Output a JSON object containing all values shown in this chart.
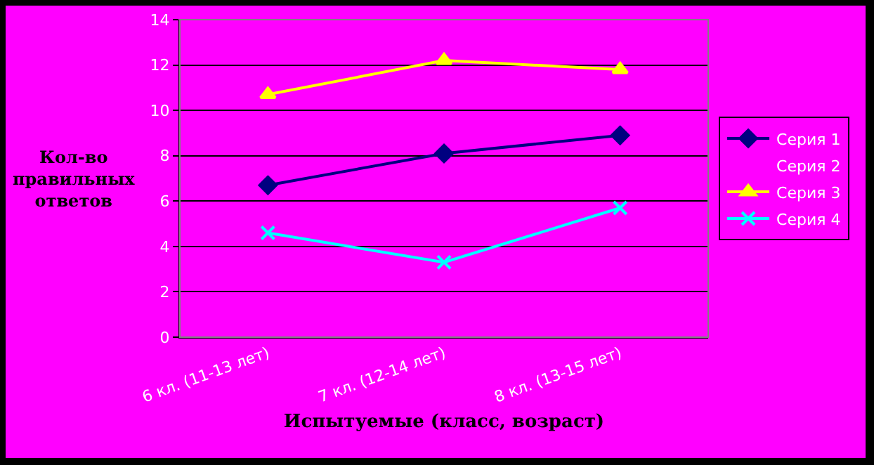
{
  "chart_data": {
    "type": "line",
    "xlabel": "Испытуемые (класс, возраст)",
    "ylabel": "Кол-во\nправильных\nответов",
    "categories": [
      "6 кл. (11-13 лет)",
      "7 кл. (12-14 лет)",
      "8 кл. (13-15 лет)"
    ],
    "series": [
      {
        "name": "Серия 1",
        "color": "#000080",
        "marker": "diamond",
        "values": [
          6.7,
          8.1,
          8.9
        ]
      },
      {
        "name": "Серия 2",
        "marker": "none",
        "values": [
          null,
          null,
          null
        ]
      },
      {
        "name": "Серия 3",
        "color": "#ffff00",
        "marker": "triangle",
        "values": [
          10.7,
          12.2,
          11.8
        ]
      },
      {
        "name": "Серия 4",
        "color": "#00ffff",
        "marker": "cross",
        "values": [
          4.6,
          3.3,
          5.7
        ]
      }
    ],
    "ylim": [
      0,
      14
    ],
    "yticks": [
      0,
      2,
      4,
      6,
      8,
      10,
      12,
      14
    ],
    "grid": "y",
    "legend": "right",
    "line_style": "solid"
  }
}
